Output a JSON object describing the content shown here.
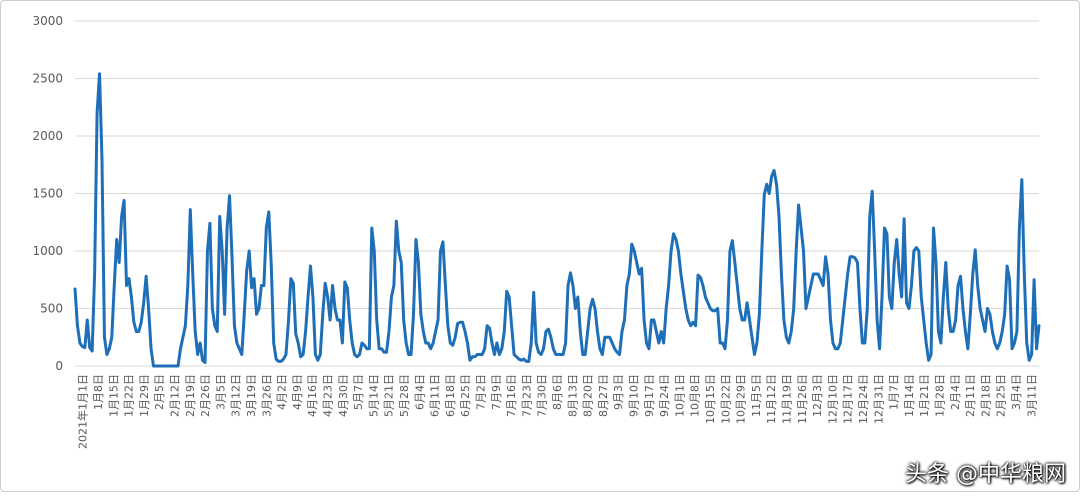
{
  "chart_data": {
    "type": "line",
    "title": "",
    "xlabel": "",
    "ylabel": "",
    "ylim": [
      0,
      3000
    ],
    "yticks": [
      0,
      500,
      1000,
      1500,
      2000,
      2500,
      3000
    ],
    "grid": true,
    "legend": "none",
    "x_tick_labels": [
      "2021年1月1日",
      "1月8日",
      "1月15日",
      "1月22日",
      "1月29日",
      "2月5日",
      "2月12日",
      "2月19日",
      "2月26日",
      "3月5日",
      "3月12日",
      "3月19日",
      "3月26日",
      "4月2日",
      "4月9日",
      "4月16日",
      "4月23日",
      "4月30日",
      "5月7日",
      "5月14日",
      "5月21日",
      "5月28日",
      "6月4日",
      "6月11日",
      "6月18日",
      "6月25日",
      "7月2日",
      "7月9日",
      "7月16日",
      "7月23日",
      "7月30日",
      "8月6日",
      "8月13日",
      "8月20日",
      "8月27日",
      "9月3日",
      "9月10日",
      "9月17日",
      "9月24日",
      "10月1日",
      "10月8日",
      "10月15日",
      "10月22日",
      "10月29日",
      "11月5日",
      "11月12日",
      "11月19日",
      "11月26日",
      "12月3日",
      "12月10日",
      "12月17日",
      "12月24日",
      "12月31日",
      "1月7日",
      "1月14日",
      "1月21日",
      "1月28日",
      "2月4日",
      "2月11日",
      "2月18日",
      "2月25日",
      "3月4日",
      "3月11日"
    ],
    "series": [
      {
        "color": "#1f6fb8",
        "values": [
          670,
          350,
          200,
          170,
          160,
          400,
          160,
          130,
          800,
          2200,
          2540,
          1800,
          250,
          100,
          150,
          250,
          700,
          1100,
          900,
          1300,
          1440,
          700,
          760,
          600,
          380,
          300,
          300,
          380,
          550,
          780,
          500,
          150,
          0,
          0,
          0,
          0,
          0,
          0,
          0,
          0,
          0,
          0,
          0,
          150,
          250,
          350,
          700,
          1360,
          800,
          300,
          100,
          200,
          50,
          30,
          1000,
          1240,
          500,
          350,
          300,
          1300,
          1000,
          450,
          1200,
          1480,
          950,
          350,
          200,
          150,
          100,
          450,
          830,
          1000,
          680,
          760,
          450,
          500,
          700,
          700,
          1200,
          1340,
          880,
          200,
          60,
          40,
          40,
          60,
          100,
          380,
          760,
          720,
          280,
          200,
          80,
          100,
          300,
          600,
          870,
          600,
          100,
          50,
          100,
          450,
          720,
          600,
          400,
          700,
          500,
          400,
          400,
          200,
          730,
          680,
          400,
          200,
          100,
          80,
          100,
          200,
          180,
          150,
          150,
          1200,
          1000,
          400,
          150,
          150,
          120,
          120,
          300,
          600,
          700,
          1260,
          1000,
          900,
          400,
          200,
          100,
          100,
          450,
          1100,
          900,
          450,
          300,
          200,
          200,
          150,
          200,
          300,
          400,
          1000,
          1080,
          700,
          350,
          200,
          180,
          250,
          370,
          380,
          380,
          300,
          200,
          50,
          80,
          80,
          100,
          100,
          100,
          150,
          350,
          330,
          200,
          100,
          200,
          100,
          150,
          300,
          650,
          600,
          350,
          100,
          80,
          60,
          50,
          60,
          40,
          40,
          200,
          640,
          200,
          120,
          100,
          150,
          300,
          320,
          250,
          150,
          100,
          100,
          100,
          100,
          200,
          700,
          810,
          700,
          500,
          600,
          300,
          100,
          100,
          300,
          500,
          580,
          500,
          300,
          150,
          100,
          250,
          250,
          250,
          200,
          150,
          120,
          100,
          300,
          400,
          700,
          800,
          1060,
          1000,
          900,
          800,
          850,
          400,
          200,
          150,
          400,
          400,
          300,
          200,
          300,
          200,
          500,
          700,
          1000,
          1150,
          1100,
          1000,
          800,
          650,
          500,
          400,
          350,
          380,
          350,
          790,
          770,
          700,
          600,
          550,
          500,
          480,
          480,
          500,
          200,
          200,
          150,
          400,
          1000,
          1090,
          900,
          700,
          500,
          400,
          400,
          550,
          400,
          250,
          100,
          200,
          450,
          1000,
          1490,
          1580,
          1500,
          1650,
          1700,
          1580,
          1300,
          800,
          400,
          250,
          200,
          300,
          500,
          1000,
          1400,
          1200,
          1000,
          500,
          600,
          700,
          800,
          800,
          800,
          750,
          700,
          950,
          800,
          400,
          200,
          150,
          150,
          200,
          400,
          600,
          800,
          950,
          950,
          940,
          900,
          500,
          200,
          200,
          500,
          1300,
          1520,
          1000,
          400,
          150,
          600,
          1200,
          1150,
          600,
          500,
          900,
          1100,
          800,
          600,
          1280,
          550,
          500,
          700,
          1000,
          1030,
          1000,
          600,
          400,
          200,
          50,
          100,
          1200,
          900,
          300,
          200,
          600,
          900,
          500,
          300,
          300,
          400,
          700,
          780,
          500,
          300,
          150,
          450,
          800,
          1010,
          700,
          500,
          400,
          300,
          500,
          450,
          300,
          200,
          150,
          200,
          300,
          450,
          870,
          750,
          150,
          200,
          300,
          1200,
          1620,
          800,
          200,
          50,
          100,
          750,
          150,
          350
        ]
      }
    ]
  },
  "watermark": "头条 @中华粮网"
}
